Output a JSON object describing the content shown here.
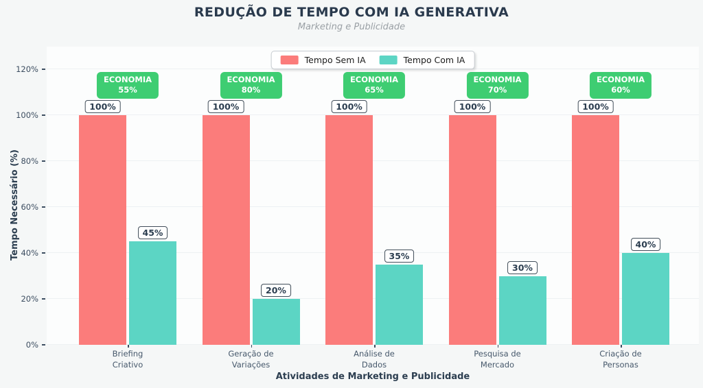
{
  "chart_data": {
    "type": "bar",
    "title": "REDUÇÃO DE TEMPO COM IA GENERATIVA",
    "subtitle": "Marketing e Publicidade",
    "xlabel": "Atividades de Marketing e Publicidade",
    "ylabel": "Tempo Necessário (%)",
    "categories": [
      "Briefing\nCriativo",
      "Geração de\nVariações",
      "Análise de\nDados",
      "Pesquisa de\nMercado",
      "Criação de\nPersonas"
    ],
    "series": [
      {
        "name": "Tempo Sem IA",
        "color": "#FB7C7B",
        "values": [
          100,
          100,
          100,
          100,
          100
        ],
        "labels": [
          "100%",
          "100%",
          "100%",
          "100%",
          "100%"
        ]
      },
      {
        "name": "Tempo Com IA",
        "color": "#5CD5C4",
        "values": [
          45,
          20,
          35,
          30,
          40
        ],
        "labels": [
          "45%",
          "20%",
          "35%",
          "30%",
          "40%"
        ]
      }
    ],
    "annotations": {
      "badge_prefix": "ECONOMIA",
      "badge_values": [
        "55%",
        "80%",
        "65%",
        "70%",
        "60%"
      ],
      "badge_color": "#3ECD72"
    },
    "yticks": {
      "values": [
        0,
        20,
        40,
        60,
        80,
        100,
        120
      ],
      "labels": [
        "0%",
        "20%",
        "40%",
        "60%",
        "80%",
        "100%",
        "120%"
      ]
    },
    "ylim": [
      0,
      130
    ],
    "grid": true,
    "legend_position": "top-center"
  }
}
